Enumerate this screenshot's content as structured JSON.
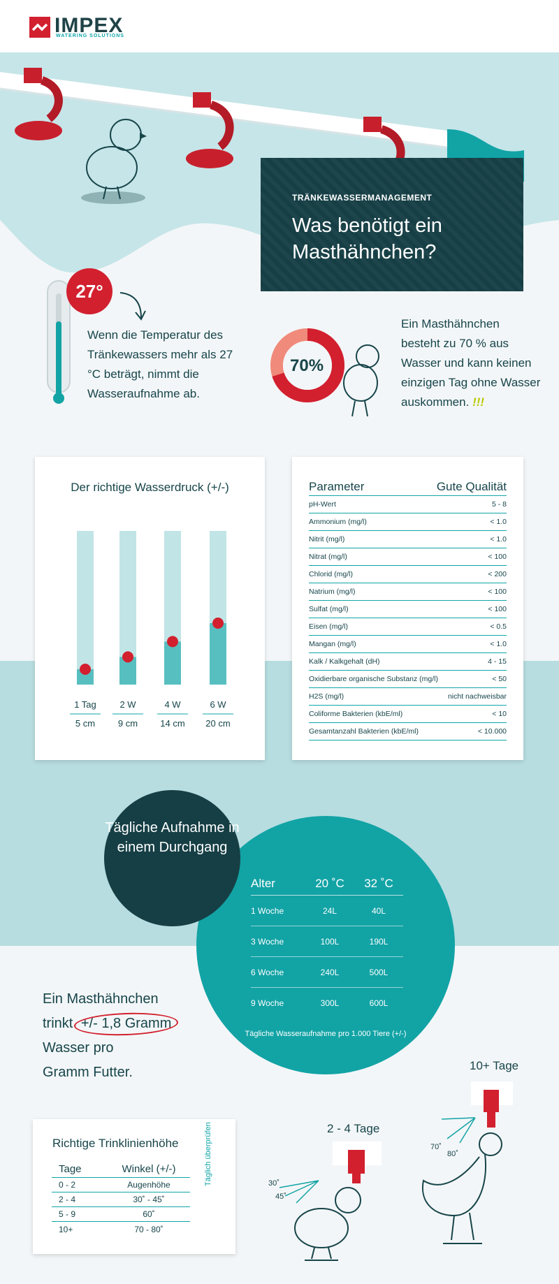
{
  "brand": {
    "name": "IMPEX",
    "tagline": "WATERING SOLUTIONS",
    "primary_color": "#d2202f",
    "teal_color": "#12a3a5",
    "dark_color": "#163f45"
  },
  "hero": {
    "kicker": "TRÄNKEWASSERMANAGEMENT",
    "title": "Was benötigt ein Masthähnchen?"
  },
  "temperature": {
    "badge": "27°",
    "text": "Wenn die Temperatur des Tränkewassers mehr als 27 °C beträgt, nimmt die Wasseraufnahme ab."
  },
  "water_share": {
    "percent_label": "70%",
    "percent_value": 70,
    "text": "Ein Masthähnchen besteht zu 70 % aus Wasser und kann keinen einzigen Tag ohne Wasser auskommen.",
    "exclaim": "!!!"
  },
  "pressure": {
    "title": "Der richtige Wasserdruck (+/-)",
    "tube_max_cm": 50,
    "tubes": [
      {
        "age": "1 Tag",
        "height": "5 cm",
        "value": 5
      },
      {
        "age": "2 W",
        "height": "9 cm",
        "value": 9
      },
      {
        "age": "4 W",
        "height": "14 cm",
        "value": 14
      },
      {
        "age": "6 W",
        "height": "20 cm",
        "value": 20
      }
    ]
  },
  "quality": {
    "head_param": "Parameter",
    "head_quality": "Gute Qualität",
    "rows": [
      {
        "p": "pH-Wert",
        "v": "5 - 8"
      },
      {
        "p": "Ammonium (mg/l)",
        "v": "< 1.0"
      },
      {
        "p": "Nitrit (mg/l)",
        "v": "< 1.0"
      },
      {
        "p": "Nitrat (mg/l)",
        "v": "< 100"
      },
      {
        "p": "Chlorid (mg/l)",
        "v": "< 200"
      },
      {
        "p": "Natrium (mg/l)",
        "v": "< 100"
      },
      {
        "p": "Sulfat (mg/l)",
        "v": "< 100"
      },
      {
        "p": "Eisen (mg/l)",
        "v": "< 0.5"
      },
      {
        "p": "Mangan (mg/l)",
        "v": "< 1.0"
      },
      {
        "p": "Kalk / Kalkgehalt (dH)",
        "v": "4 - 15"
      },
      {
        "p": "Oxidierbare organische Substanz (mg/l)",
        "v": "< 50"
      },
      {
        "p": "H2S (mg/l)",
        "v": "nicht nachweisbar"
      },
      {
        "p": "Coliforme Bakterien (kbE/ml)",
        "v": "< 10"
      },
      {
        "p": "Gesamtanzahl Bakterien (kbE/ml)",
        "v": "< 10.000"
      }
    ]
  },
  "intake": {
    "circle_title": "Tägliche Aufnahme in einem Durchgang",
    "head_age": "Alter",
    "head_20": "20 ˚C",
    "head_32": "32 ˚C",
    "rows": [
      {
        "age": "1 Woche",
        "t20": "24L",
        "t32": "40L"
      },
      {
        "age": "3 Woche",
        "t20": "100L",
        "t32": "190L"
      },
      {
        "age": "6 Woche",
        "t20": "240L",
        "t32": "500L"
      },
      {
        "age": "9 Woche",
        "t20": "300L",
        "t32": "600L"
      }
    ],
    "note": "Tägliche Wasseraufnahme pro 1.000 Tiere (+/-)"
  },
  "drinks": {
    "line1": "Ein Masthähnchen",
    "line2_pre": "trinkt",
    "highlight": "+/- 1,8 Gramm",
    "line3": "Wasser pro",
    "line4": "Gramm Futter."
  },
  "line_height": {
    "title": "Richtige Trinklinienhöhe",
    "head_days": "Tage",
    "head_angle": "Winkel (+/-)",
    "rows": [
      {
        "d": "0 - 2",
        "a": "Augenhöhe"
      },
      {
        "d": "2 - 4",
        "a": "30˚ - 45˚"
      },
      {
        "d": "5 - 9",
        "a": "60˚"
      },
      {
        "d": "10+",
        "a": "70 - 80˚"
      }
    ],
    "vertical_note": "Täglich überprüfen"
  },
  "illustration": {
    "label_24": "2 - 4 Tage",
    "label_10": "10+ Tage",
    "angle_30": "30˚",
    "angle_45": "45˚",
    "angle_70": "70˚",
    "angle_80": "80˚"
  }
}
